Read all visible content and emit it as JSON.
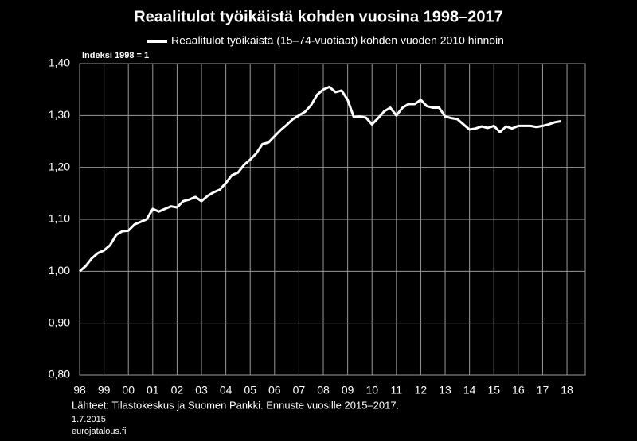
{
  "chart_data": {
    "type": "line",
    "title": "Reaalitulot työikäistä kohden vuosina 1998–2017",
    "y_annotation": "Indeksi 1998 = 1",
    "source": "Lähteet: Tilastokeskus ja Suomen Pankki. Ennuste vuosille 2015–2017.",
    "date": "1.7.2015",
    "site": "eurojatalous.fi",
    "grid": true,
    "x": [
      1998,
      1998.25,
      1998.5,
      1998.75,
      1999,
      1999.25,
      1999.5,
      1999.75,
      2000,
      2000.25,
      2000.5,
      2000.75,
      2001,
      2001.25,
      2001.5,
      2001.75,
      2002,
      2002.25,
      2002.5,
      2002.75,
      2003,
      2003.25,
      2003.5,
      2003.75,
      2004,
      2004.25,
      2004.5,
      2004.75,
      2005,
      2005.25,
      2005.5,
      2005.75,
      2006,
      2006.25,
      2006.5,
      2006.75,
      2007,
      2007.25,
      2007.5,
      2007.75,
      2008,
      2008.25,
      2008.5,
      2008.75,
      2009,
      2009.25,
      2009.5,
      2009.75,
      2010,
      2010.25,
      2010.5,
      2010.75,
      2011,
      2011.25,
      2011.5,
      2011.75,
      2012,
      2012.25,
      2012.5,
      2012.75,
      2013,
      2013.25,
      2013.5,
      2013.75,
      2014,
      2014.25,
      2014.5,
      2014.75,
      2015,
      2015.25,
      2015.5,
      2015.75,
      2016,
      2016.25,
      2016.5,
      2016.75,
      2017,
      2017.25,
      2017.5,
      2017.75
    ],
    "series": [
      {
        "name": "Reaalitulot työikäistä (15–74-vuotiaat) kohden vuoden 2010 hinnoin",
        "color": "#ffffff",
        "values": [
          1.0,
          1.01,
          1.025,
          1.035,
          1.04,
          1.05,
          1.07,
          1.077,
          1.078,
          1.09,
          1.095,
          1.1,
          1.12,
          1.115,
          1.12,
          1.125,
          1.123,
          1.135,
          1.138,
          1.143,
          1.135,
          1.145,
          1.152,
          1.157,
          1.17,
          1.185,
          1.19,
          1.205,
          1.215,
          1.227,
          1.245,
          1.248,
          1.26,
          1.272,
          1.282,
          1.293,
          1.3,
          1.307,
          1.32,
          1.34,
          1.35,
          1.355,
          1.345,
          1.348,
          1.33,
          1.297,
          1.298,
          1.296,
          1.283,
          1.295,
          1.308,
          1.315,
          1.3,
          1.315,
          1.322,
          1.322,
          1.33,
          1.318,
          1.315,
          1.315,
          1.298,
          1.295,
          1.293,
          1.283,
          1.273,
          1.275,
          1.279,
          1.276,
          1.28,
          1.268,
          1.279,
          1.275,
          1.28,
          1.28,
          1.28,
          1.278,
          1.28,
          1.283,
          1.287,
          1.289
        ]
      }
    ],
    "xlim": [
      1998,
      2018.75
    ],
    "xticks": [
      {
        "value": 1998,
        "label": "98"
      },
      {
        "value": 1999,
        "label": "99"
      },
      {
        "value": 2000,
        "label": "00"
      },
      {
        "value": 2001,
        "label": "01"
      },
      {
        "value": 2002,
        "label": "02"
      },
      {
        "value": 2003,
        "label": "03"
      },
      {
        "value": 2004,
        "label": "04"
      },
      {
        "value": 2005,
        "label": "05"
      },
      {
        "value": 2006,
        "label": "06"
      },
      {
        "value": 2007,
        "label": "07"
      },
      {
        "value": 2008,
        "label": "08"
      },
      {
        "value": 2009,
        "label": "09"
      },
      {
        "value": 2010,
        "label": "10"
      },
      {
        "value": 2011,
        "label": "11"
      },
      {
        "value": 2012,
        "label": "12"
      },
      {
        "value": 2013,
        "label": "13"
      },
      {
        "value": 2014,
        "label": "14"
      },
      {
        "value": 2015,
        "label": "15"
      },
      {
        "value": 2016,
        "label": "16"
      },
      {
        "value": 2017,
        "label": "17"
      },
      {
        "value": 2018,
        "label": "18"
      }
    ],
    "ylim": [
      0.8,
      1.4
    ],
    "yticks": [
      {
        "value": 0.8,
        "label": "0,80"
      },
      {
        "value": 0.9,
        "label": "0,90"
      },
      {
        "value": 1.0,
        "label": "1,00"
      },
      {
        "value": 1.1,
        "label": "1,10"
      },
      {
        "value": 1.2,
        "label": "1,20"
      },
      {
        "value": 1.3,
        "label": "1,30"
      },
      {
        "value": 1.4,
        "label": "1,40"
      }
    ]
  }
}
